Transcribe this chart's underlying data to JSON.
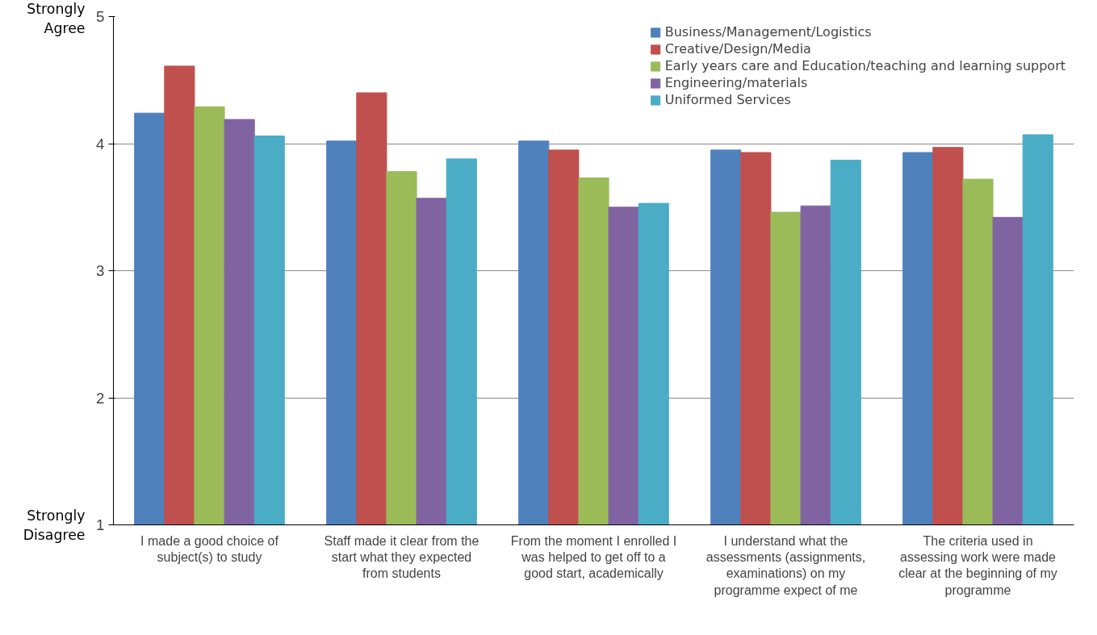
{
  "chart_data": {
    "type": "bar",
    "categories": [
      "I made a good choice of subject(s) to study",
      "Staff made it clear from the start what they expected from students",
      "From the moment I enrolled I was helped to get off to a good start, academically",
      "I understand what the assessments (assignments, examinations) on my programme expect of me",
      "The criteria used in assessing work were made clear at the beginning of my programme"
    ],
    "series": [
      {
        "name": "Business/Management/Logistics",
        "color": "#4f81bd",
        "values": [
          4.24,
          4.02,
          4.02,
          3.95,
          3.93
        ]
      },
      {
        "name": "Creative/Design/Media",
        "color": "#c0504d",
        "values": [
          4.61,
          4.4,
          3.95,
          3.93,
          3.97
        ]
      },
      {
        "name": "Early years care and Education/teaching and learning support",
        "color": "#9bbb59",
        "values": [
          4.29,
          3.78,
          3.73,
          3.46,
          3.72
        ]
      },
      {
        "name": "Engineering/materials",
        "color": "#8064a2",
        "values": [
          4.19,
          3.57,
          3.5,
          3.51,
          3.42
        ]
      },
      {
        "name": "Uniformed Services",
        "color": "#4bacc6",
        "values": [
          4.06,
          3.88,
          3.53,
          3.87,
          4.07
        ]
      }
    ],
    "ylim": [
      1,
      5
    ],
    "yticks": [
      1,
      2,
      3,
      4,
      5
    ],
    "grid": "y",
    "legend": "top right",
    "annotations": [
      "Strongly Agree",
      "Strongly Disagree"
    ]
  }
}
